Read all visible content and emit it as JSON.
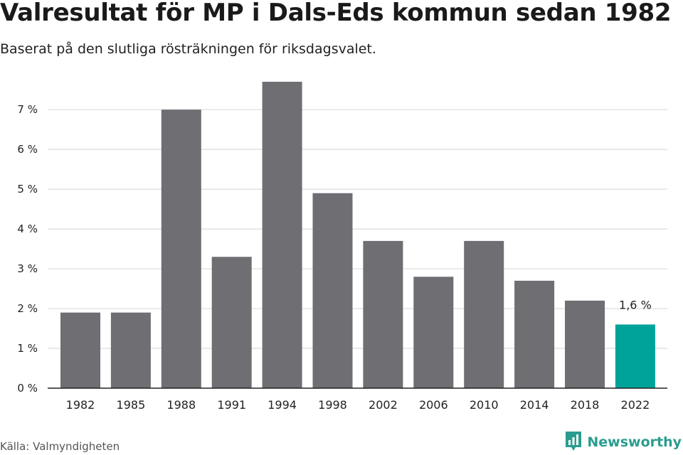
{
  "title": "Valresultat för MP i Dals-Eds kommun sedan 1982",
  "subtitle": "Baserat på den slutliga rösträkningen för riksdagsvalet.",
  "source": "Källa: Valmyndigheten",
  "brand": {
    "name": "Newsworthy",
    "icon": "newsworthy-logo-icon"
  },
  "colors": {
    "bar": "#6e6e73",
    "highlight": "#00a39a",
    "grid": "#dcdcdc",
    "axis": "#222222"
  },
  "chart_data": {
    "type": "bar",
    "categories": [
      "1982",
      "1985",
      "1988",
      "1991",
      "1994",
      "1998",
      "2002",
      "2006",
      "2010",
      "2014",
      "2018",
      "2022"
    ],
    "values": [
      1.9,
      1.9,
      7.0,
      3.3,
      7.7,
      4.9,
      3.7,
      2.8,
      3.7,
      2.7,
      2.2,
      1.6
    ],
    "ylim": [
      0,
      7.7
    ],
    "yticks": [
      0,
      1,
      2,
      3,
      4,
      5,
      6,
      7
    ],
    "ytick_labels": [
      "0 %",
      "1 %",
      "2 %",
      "3 %",
      "4 %",
      "5 %",
      "6 %",
      "7 %"
    ],
    "highlight_index": 11,
    "data_labels": [
      {
        "index": 11,
        "text": "1,6 %"
      }
    ],
    "grid": true,
    "xlabel": "",
    "ylabel": ""
  }
}
